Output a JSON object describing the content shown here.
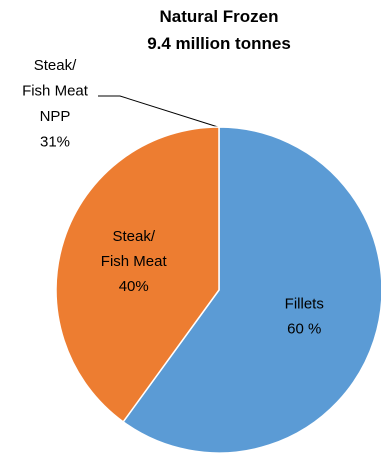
{
  "chart_data": {
    "type": "pie",
    "title": "Natural Frozen\n9.4 million tonnes",
    "categories": [
      "Fillets",
      "Steak/\nFish Meat"
    ],
    "values": [
      60,
      40
    ],
    "value_labels": [
      "60 %",
      "40%"
    ],
    "colors": [
      "#5b9bd5",
      "#ed7d31"
    ],
    "annotation": "Steak/\nFish Meat\nNPP\n31%"
  }
}
